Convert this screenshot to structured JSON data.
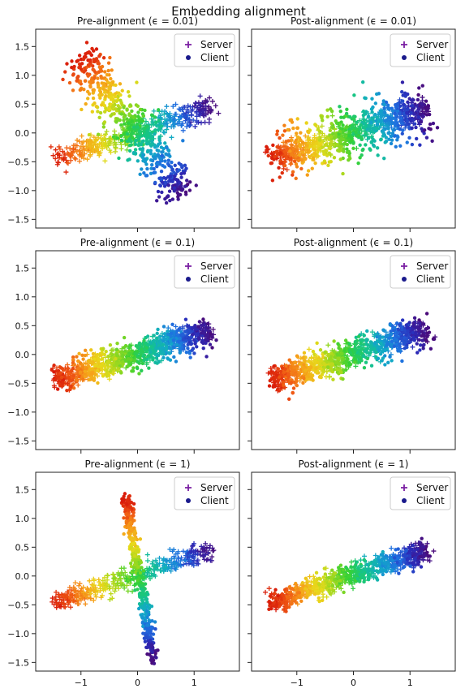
{
  "figure": {
    "title": "Embedding alignment"
  },
  "legend": {
    "position": "top-right",
    "entries": [
      {
        "label": "Server",
        "marker": "plus",
        "color": "#7a1fa2"
      },
      {
        "label": "Client",
        "marker": "dot",
        "color": "#1a1a8c"
      }
    ]
  },
  "colormap": [
    "#4b0b7a",
    "#2b2bb8",
    "#1f6fe0",
    "#12a8c8",
    "#15c48a",
    "#35d135",
    "#9ad81f",
    "#e8d91a",
    "#f6a21a",
    "#f05a14",
    "#d81a0a"
  ],
  "chart_data": [
    {
      "type": "scatter",
      "title": "Pre-alignment (ϵ = 0.01)",
      "xlim": [
        -1.8,
        1.8
      ],
      "ylim": [
        -1.65,
        1.8
      ],
      "xticks": [
        -1,
        0,
        1
      ],
      "yticks": [
        -1.5,
        -1.0,
        -0.5,
        0.0,
        0.5,
        1.0,
        1.5
      ],
      "grid": false,
      "legend": "top-right",
      "series": [
        {
          "name": "Server",
          "marker": "plus",
          "shape": "line",
          "start": [
            -1.45,
            -0.45
          ],
          "end": [
            1.3,
            0.45
          ],
          "spread": 0.1,
          "count": 450
        },
        {
          "name": "Client",
          "marker": "dot",
          "shape": "line",
          "start": [
            -1.0,
            1.3
          ],
          "end": [
            0.8,
            -1.05
          ],
          "spread": 0.18,
          "count": 600
        }
      ]
    },
    {
      "type": "scatter",
      "title": "Post-alignment (ϵ = 0.01)",
      "xlim": [
        -1.8,
        1.8
      ],
      "ylim": [
        -1.65,
        1.8
      ],
      "xticks": [
        -1,
        0,
        1
      ],
      "yticks": [
        -1.5,
        -1.0,
        -0.5,
        0.0,
        0.5,
        1.0,
        1.5
      ],
      "grid": false,
      "legend": "top-right",
      "series": [
        {
          "name": "Server",
          "marker": "plus",
          "shape": "line",
          "start": [
            -1.45,
            -0.45
          ],
          "end": [
            1.3,
            0.45
          ],
          "spread": 0.1,
          "count": 450
        },
        {
          "name": "Client",
          "marker": "dot",
          "shape": "line",
          "start": [
            -1.45,
            -0.5
          ],
          "end": [
            1.3,
            0.42
          ],
          "spread": 0.22,
          "count": 550
        }
      ]
    },
    {
      "type": "scatter",
      "title": "Pre-alignment (ϵ = 0.1)",
      "xlim": [
        -1.8,
        1.8
      ],
      "ylim": [
        -1.65,
        1.8
      ],
      "xticks": [
        -1,
        0,
        1
      ],
      "yticks": [
        -1.5,
        -1.0,
        -0.5,
        0.0,
        0.5,
        1.0,
        1.5
      ],
      "grid": false,
      "legend": "top-right",
      "series": [
        {
          "name": "Server",
          "marker": "plus",
          "shape": "line",
          "start": [
            -1.45,
            -0.45
          ],
          "end": [
            1.3,
            0.45
          ],
          "spread": 0.1,
          "count": 450
        },
        {
          "name": "Client",
          "marker": "dot",
          "shape": "line",
          "start": [
            1.3,
            0.4
          ],
          "end": [
            -1.45,
            -0.42
          ],
          "spread": 0.13,
          "count": 550
        }
      ]
    },
    {
      "type": "scatter",
      "title": "Post-alignment (ϵ = 0.1)",
      "xlim": [
        -1.8,
        1.8
      ],
      "ylim": [
        -1.65,
        1.8
      ],
      "xticks": [
        -1,
        0,
        1
      ],
      "yticks": [
        -1.5,
        -1.0,
        -0.5,
        0.0,
        0.5,
        1.0,
        1.5
      ],
      "grid": false,
      "legend": "top-right",
      "series": [
        {
          "name": "Server",
          "marker": "plus",
          "shape": "line",
          "start": [
            -1.45,
            -0.45
          ],
          "end": [
            1.3,
            0.45
          ],
          "spread": 0.1,
          "count": 450
        },
        {
          "name": "Client",
          "marker": "dot",
          "shape": "line",
          "start": [
            -1.45,
            -0.45
          ],
          "end": [
            1.3,
            0.45
          ],
          "spread": 0.13,
          "count": 550
        }
      ]
    },
    {
      "type": "scatter",
      "title": "Pre-alignment (ϵ = 1)",
      "xlim": [
        -1.8,
        1.8
      ],
      "ylim": [
        -1.65,
        1.8
      ],
      "xticks": [
        -1,
        0,
        1
      ],
      "yticks": [
        -1.5,
        -1.0,
        -0.5,
        0.0,
        0.5,
        1.0,
        1.5
      ],
      "grid": false,
      "legend": "top-right",
      "series": [
        {
          "name": "Server",
          "marker": "plus",
          "shape": "line",
          "start": [
            -1.45,
            -0.45
          ],
          "end": [
            1.3,
            0.45
          ],
          "spread": 0.09,
          "count": 450
        },
        {
          "name": "Client",
          "marker": "dot",
          "shape": "line",
          "start": [
            -0.2,
            1.35
          ],
          "end": [
            0.28,
            -1.45
          ],
          "spread": 0.05,
          "count": 450
        }
      ]
    },
    {
      "type": "scatter",
      "title": "Post-alignment (ϵ = 1)",
      "xlim": [
        -1.8,
        1.8
      ],
      "ylim": [
        -1.65,
        1.8
      ],
      "xticks": [
        -1,
        0,
        1
      ],
      "yticks": [
        -1.5,
        -1.0,
        -0.5,
        0.0,
        0.5,
        1.0,
        1.5
      ],
      "grid": false,
      "legend": "top-right",
      "series": [
        {
          "name": "Server",
          "marker": "plus",
          "shape": "line",
          "start": [
            -1.45,
            -0.45
          ],
          "end": [
            1.3,
            0.45
          ],
          "spread": 0.09,
          "count": 450
        },
        {
          "name": "Client",
          "marker": "dot",
          "shape": "line",
          "start": [
            -1.45,
            -0.45
          ],
          "end": [
            1.3,
            0.45
          ],
          "spread": 0.09,
          "count": 450
        }
      ]
    }
  ]
}
